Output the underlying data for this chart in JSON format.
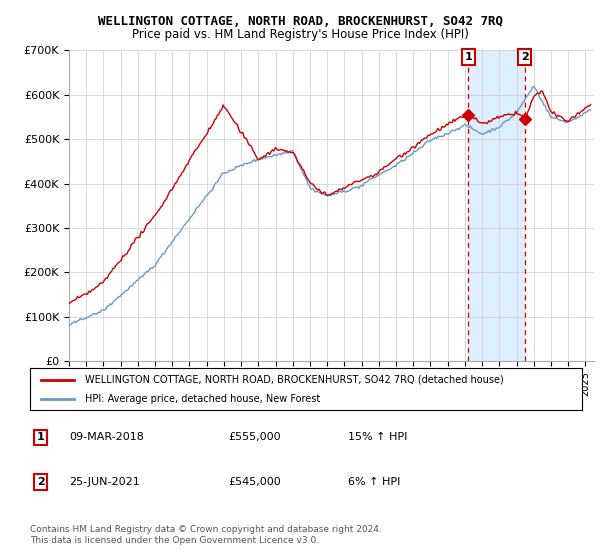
{
  "title": "WELLINGTON COTTAGE, NORTH ROAD, BROCKENHURST, SO42 7RQ",
  "subtitle": "Price paid vs. HM Land Registry's House Price Index (HPI)",
  "ylim": [
    0,
    700000
  ],
  "xlim_start": 1995.0,
  "xlim_end": 2025.5,
  "legend_line1": "WELLINGTON COTTAGE, NORTH ROAD, BROCKENHURST, SO42 7RQ (detached house)",
  "legend_line2": "HPI: Average price, detached house, New Forest",
  "sale1_date": "09-MAR-2018",
  "sale1_price": "£555,000",
  "sale1_hpi": "15% ↑ HPI",
  "sale1_year": 2018.19,
  "sale1_value": 555000,
  "sale2_date": "25-JUN-2021",
  "sale2_price": "£545,000",
  "sale2_hpi": "6% ↑ HPI",
  "sale2_year": 2021.48,
  "sale2_value": 545000,
  "copyright": "Contains HM Land Registry data © Crown copyright and database right 2024.\nThis data is licensed under the Open Government Licence v3.0.",
  "red_color": "#cc0000",
  "blue_color": "#6699cc",
  "shade_color": "#ddeeff",
  "grid_color": "#cccccc"
}
